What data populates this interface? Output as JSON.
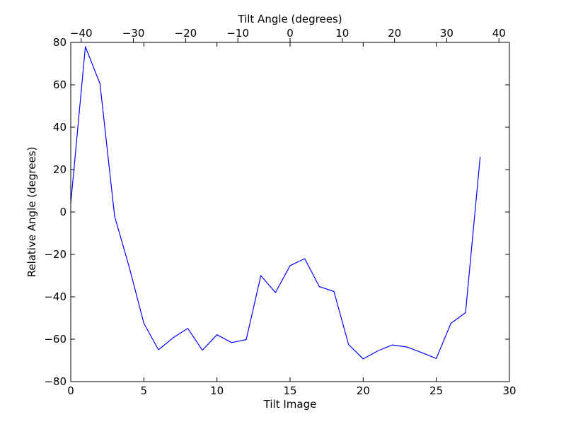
{
  "chart_data": {
    "type": "line",
    "xlabel": "Tilt Image",
    "ylabel": "Relative Angle (degrees)",
    "top_xlabel": "Tilt Angle (degrees)",
    "xlim": [
      0,
      30
    ],
    "ylim": [
      -80,
      80
    ],
    "top_xlim": [
      -42,
      42
    ],
    "grid": false,
    "line_color": "#0000ff",
    "x_ticks": [
      0,
      5,
      10,
      15,
      20,
      25,
      30
    ],
    "x_tick_labels": [
      "0",
      "5",
      "10",
      "15",
      "20",
      "25",
      "30"
    ],
    "y_ticks": [
      -80,
      -60,
      -40,
      -20,
      0,
      20,
      40,
      60,
      80
    ],
    "y_tick_labels": [
      "−80",
      "−60",
      "−40",
      "−20",
      "0",
      "20",
      "40",
      "60",
      "80"
    ],
    "top_x_ticks": [
      -40,
      -30,
      -20,
      -10,
      0,
      10,
      20,
      30,
      40
    ],
    "top_x_tick_labels": [
      "−40",
      "−30",
      "−20",
      "−10",
      "0",
      "10",
      "20",
      "30",
      "40"
    ],
    "series": [
      {
        "x": [
          0,
          1,
          2,
          3,
          4,
          5,
          6,
          7,
          8,
          9,
          10,
          11,
          12,
          13,
          14,
          15,
          16,
          17,
          18,
          19,
          20,
          21,
          22,
          23,
          24,
          25,
          26,
          27,
          28
        ],
        "values": [
          4,
          78,
          60.5,
          -2,
          -26,
          -52.5,
          -65,
          -59.3,
          -54.9,
          -65.2,
          -57.9,
          -61.6,
          -60.2,
          -30,
          -38,
          -25.3,
          -22,
          -35.2,
          -37.5,
          -62.5,
          -69.3,
          -65.5,
          -62.7,
          -63.7,
          -66.3,
          -69.1,
          -52.5,
          -47.5,
          26
        ]
      }
    ]
  }
}
